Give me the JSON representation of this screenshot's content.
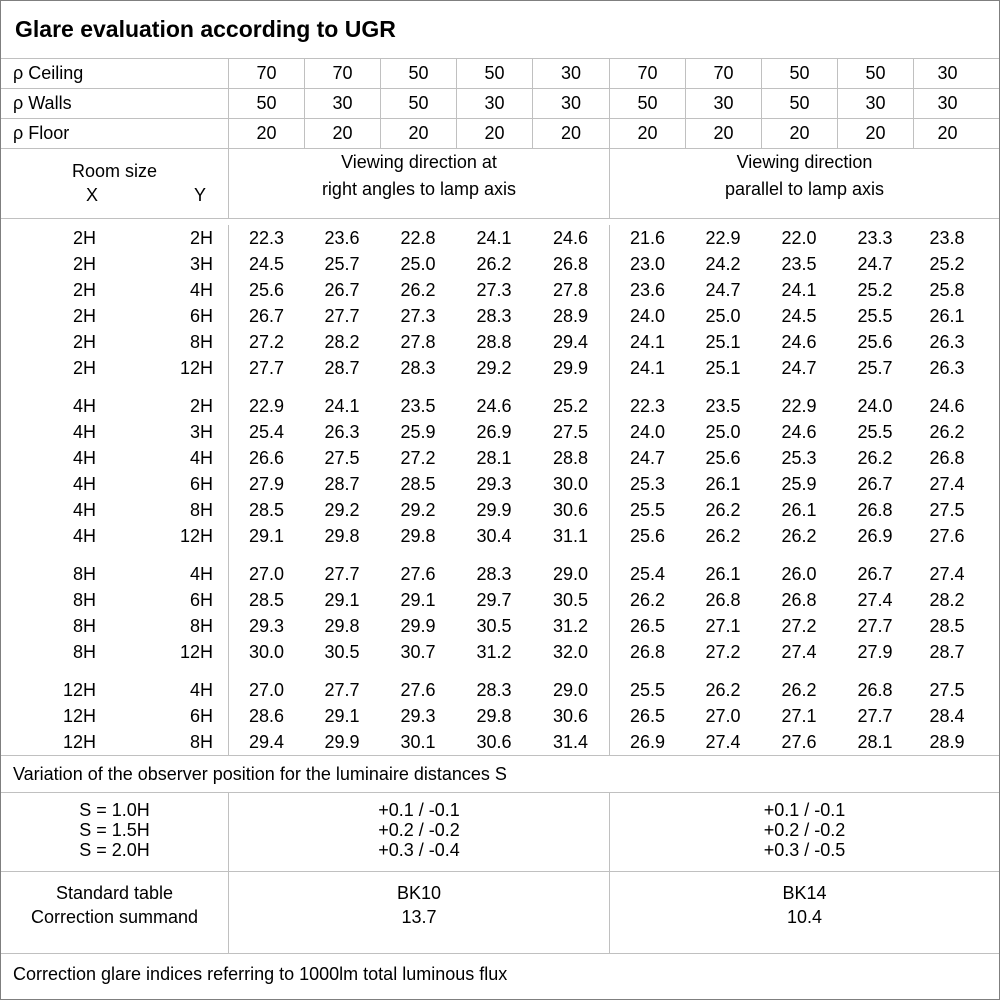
{
  "title": "Glare evaluation according to UGR",
  "reflectance_rows": [
    {
      "label": "ρ Ceiling",
      "values": [
        "70",
        "70",
        "50",
        "50",
        "30",
        "70",
        "70",
        "50",
        "50",
        "30"
      ]
    },
    {
      "label": "ρ Walls",
      "values": [
        "50",
        "30",
        "50",
        "30",
        "30",
        "50",
        "30",
        "50",
        "30",
        "30"
      ]
    },
    {
      "label": "ρ Floor",
      "values": [
        "20",
        "20",
        "20",
        "20",
        "20",
        "20",
        "20",
        "20",
        "20",
        "20"
      ]
    }
  ],
  "header": {
    "room_size_label": "Room size",
    "x_label": "X",
    "y_label": "Y",
    "right_angles_title": [
      "Viewing direction at",
      "right angles to lamp axis"
    ],
    "parallel_title": [
      "Viewing direction",
      "parallel to lamp axis"
    ]
  },
  "ugr_table": {
    "blocks": [
      {
        "rows": [
          {
            "x": "2H",
            "y": "2H",
            "right_angles": [
              "22.3",
              "23.6",
              "22.8",
              "24.1",
              "24.6"
            ],
            "parallel": [
              "21.6",
              "22.9",
              "22.0",
              "23.3",
              "23.8"
            ]
          },
          {
            "x": "2H",
            "y": "3H",
            "right_angles": [
              "24.5",
              "25.7",
              "25.0",
              "26.2",
              "26.8"
            ],
            "parallel": [
              "23.0",
              "24.2",
              "23.5",
              "24.7",
              "25.2"
            ]
          },
          {
            "x": "2H",
            "y": "4H",
            "right_angles": [
              "25.6",
              "26.7",
              "26.2",
              "27.3",
              "27.8"
            ],
            "parallel": [
              "23.6",
              "24.7",
              "24.1",
              "25.2",
              "25.8"
            ]
          },
          {
            "x": "2H",
            "y": "6H",
            "right_angles": [
              "26.7",
              "27.7",
              "27.3",
              "28.3",
              "28.9"
            ],
            "parallel": [
              "24.0",
              "25.0",
              "24.5",
              "25.5",
              "26.1"
            ]
          },
          {
            "x": "2H",
            "y": "8H",
            "right_angles": [
              "27.2",
              "28.2",
              "27.8",
              "28.8",
              "29.4"
            ],
            "parallel": [
              "24.1",
              "25.1",
              "24.6",
              "25.6",
              "26.3"
            ]
          },
          {
            "x": "2H",
            "y": "12H",
            "right_angles": [
              "27.7",
              "28.7",
              "28.3",
              "29.2",
              "29.9"
            ],
            "parallel": [
              "24.1",
              "25.1",
              "24.7",
              "25.7",
              "26.3"
            ]
          }
        ]
      },
      {
        "rows": [
          {
            "x": "4H",
            "y": "2H",
            "right_angles": [
              "22.9",
              "24.1",
              "23.5",
              "24.6",
              "25.2"
            ],
            "parallel": [
              "22.3",
              "23.5",
              "22.9",
              "24.0",
              "24.6"
            ]
          },
          {
            "x": "4H",
            "y": "3H",
            "right_angles": [
              "25.4",
              "26.3",
              "25.9",
              "26.9",
              "27.5"
            ],
            "parallel": [
              "24.0",
              "25.0",
              "24.6",
              "25.5",
              "26.2"
            ]
          },
          {
            "x": "4H",
            "y": "4H",
            "right_angles": [
              "26.6",
              "27.5",
              "27.2",
              "28.1",
              "28.8"
            ],
            "parallel": [
              "24.7",
              "25.6",
              "25.3",
              "26.2",
              "26.8"
            ]
          },
          {
            "x": "4H",
            "y": "6H",
            "right_angles": [
              "27.9",
              "28.7",
              "28.5",
              "29.3",
              "30.0"
            ],
            "parallel": [
              "25.3",
              "26.1",
              "25.9",
              "26.7",
              "27.4"
            ]
          },
          {
            "x": "4H",
            "y": "8H",
            "right_angles": [
              "28.5",
              "29.2",
              "29.2",
              "29.9",
              "30.6"
            ],
            "parallel": [
              "25.5",
              "26.2",
              "26.1",
              "26.8",
              "27.5"
            ]
          },
          {
            "x": "4H",
            "y": "12H",
            "right_angles": [
              "29.1",
              "29.8",
              "29.8",
              "30.4",
              "31.1"
            ],
            "parallel": [
              "25.6",
              "26.2",
              "26.2",
              "26.9",
              "27.6"
            ]
          }
        ]
      },
      {
        "rows": [
          {
            "x": "8H",
            "y": "4H",
            "right_angles": [
              "27.0",
              "27.7",
              "27.6",
              "28.3",
              "29.0"
            ],
            "parallel": [
              "25.4",
              "26.1",
              "26.0",
              "26.7",
              "27.4"
            ]
          },
          {
            "x": "8H",
            "y": "6H",
            "right_angles": [
              "28.5",
              "29.1",
              "29.1",
              "29.7",
              "30.5"
            ],
            "parallel": [
              "26.2",
              "26.8",
              "26.8",
              "27.4",
              "28.2"
            ]
          },
          {
            "x": "8H",
            "y": "8H",
            "right_angles": [
              "29.3",
              "29.8",
              "29.9",
              "30.5",
              "31.2"
            ],
            "parallel": [
              "26.5",
              "27.1",
              "27.2",
              "27.7",
              "28.5"
            ]
          },
          {
            "x": "8H",
            "y": "12H",
            "right_angles": [
              "30.0",
              "30.5",
              "30.7",
              "31.2",
              "32.0"
            ],
            "parallel": [
              "26.8",
              "27.2",
              "27.4",
              "27.9",
              "28.7"
            ]
          }
        ]
      },
      {
        "rows": [
          {
            "x": "12H",
            "y": "4H",
            "right_angles": [
              "27.0",
              "27.7",
              "27.6",
              "28.3",
              "29.0"
            ],
            "parallel": [
              "25.5",
              "26.2",
              "26.2",
              "26.8",
              "27.5"
            ]
          },
          {
            "x": "12H",
            "y": "6H",
            "right_angles": [
              "28.6",
              "29.1",
              "29.3",
              "29.8",
              "30.6"
            ],
            "parallel": [
              "26.5",
              "27.0",
              "27.1",
              "27.7",
              "28.4"
            ]
          },
          {
            "x": "12H",
            "y": "8H",
            "right_angles": [
              "29.4",
              "29.9",
              "30.1",
              "30.6",
              "31.4"
            ],
            "parallel": [
              "26.9",
              "27.4",
              "27.6",
              "28.1",
              "28.9"
            ]
          }
        ]
      }
    ]
  },
  "variation_note": "Variation of the observer position for the luminaire distances S",
  "observer_variation": {
    "labels": [
      "S = 1.0H",
      "S = 1.5H",
      "S = 2.0H"
    ],
    "right_angles": [
      "+0.1 / -0.1",
      "+0.2 / -0.2",
      "+0.3 / -0.4"
    ],
    "parallel": [
      "+0.1 / -0.1",
      "+0.2 / -0.2",
      "+0.3 / -0.5"
    ]
  },
  "standard_block": {
    "row_labels": [
      "Standard table",
      "Correction summand"
    ],
    "right_angles": [
      "BK10",
      "13.7"
    ],
    "parallel": [
      "BK14",
      "10.4"
    ]
  },
  "footer_note": "Correction glare indices referring to 1000lm total luminous flux",
  "colors": {
    "grid_line": "#c0c0c0",
    "outer_border": "#7f7f7f",
    "text": "#000000",
    "background": "#ffffff"
  }
}
